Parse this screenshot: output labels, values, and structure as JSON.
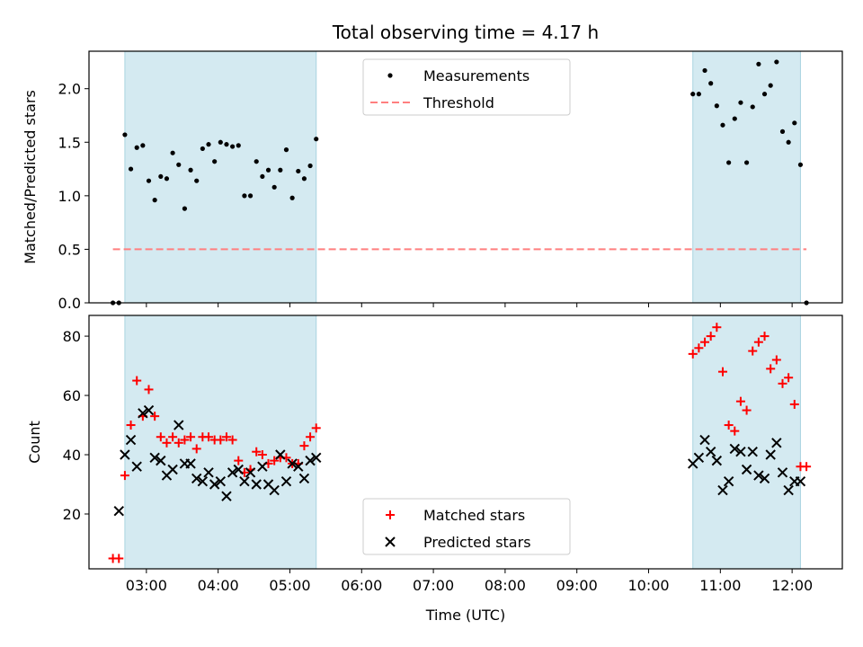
{
  "chart_data": [
    {
      "type": "scatter",
      "title": "Total observing time = 4.17 h",
      "xlabel": "",
      "ylabel": "Matched/Predicted stars",
      "xlim": [
        "02:12",
        "12:42"
      ],
      "ylim": [
        0,
        2.35
      ],
      "yticks": [
        0.0,
        0.5,
        1.0,
        1.5,
        2.0
      ],
      "ytick_labels": [
        "0.0",
        "0.5",
        "1.0",
        "1.5",
        "2.0"
      ],
      "shaded_intervals": [
        [
          "02:42",
          "05:22"
        ],
        [
          "10:37",
          "12:07"
        ]
      ],
      "shade_color": "#d4eaf1",
      "legend_position": "upper center",
      "series": [
        {
          "name": "Measurements",
          "marker": "dot",
          "color": "#000000",
          "x": [
            "02:32",
            "02:37",
            "02:42",
            "02:47",
            "02:52",
            "02:57",
            "03:02",
            "03:07",
            "03:12",
            "03:17",
            "03:22",
            "03:27",
            "03:32",
            "03:37",
            "03:42",
            "03:47",
            "03:52",
            "03:57",
            "04:02",
            "04:07",
            "04:12",
            "04:17",
            "04:22",
            "04:27",
            "04:32",
            "04:37",
            "04:42",
            "04:47",
            "04:52",
            "04:57",
            "05:02",
            "05:07",
            "05:12",
            "05:17",
            "05:22",
            "10:37",
            "10:42",
            "10:47",
            "10:52",
            "10:57",
            "11:02",
            "11:07",
            "11:12",
            "11:17",
            "11:22",
            "11:27",
            "11:32",
            "11:37",
            "11:42",
            "11:47",
            "11:52",
            "11:57",
            "12:02",
            "12:07",
            "12:12"
          ],
          "y": [
            0.0,
            0.0,
            1.57,
            1.25,
            1.45,
            1.47,
            1.14,
            0.96,
            1.18,
            1.16,
            1.4,
            1.29,
            0.88,
            1.24,
            1.14,
            1.44,
            1.48,
            1.32,
            1.5,
            1.48,
            1.46,
            1.47,
            1.0,
            1.0,
            1.32,
            1.18,
            1.24,
            1.08,
            1.24,
            1.43,
            0.98,
            1.23,
            1.16,
            1.28,
            1.53,
            1.95,
            1.95,
            2.17,
            2.05,
            1.84,
            1.66,
            1.31,
            1.72,
            1.87,
            1.31,
            1.83,
            2.23,
            1.95,
            2.03,
            2.25,
            1.6,
            1.5,
            1.68,
            1.29,
            0.0
          ]
        },
        {
          "name": "Threshold",
          "line_style": "dashed",
          "color": "#ff7f7f",
          "x": [
            "02:32",
            "12:12"
          ],
          "y": [
            0.5,
            0.5
          ]
        }
      ]
    },
    {
      "type": "scatter",
      "title": "",
      "xlabel": "Time (UTC)",
      "ylabel": "Count",
      "xlim": [
        "02:12",
        "12:42"
      ],
      "ylim": [
        1.5,
        87
      ],
      "yticks": [
        20,
        40,
        60,
        80
      ],
      "ytick_labels": [
        "20",
        "40",
        "60",
        "80"
      ],
      "xticks": [
        "03:00",
        "04:00",
        "05:00",
        "06:00",
        "07:00",
        "08:00",
        "09:00",
        "10:00",
        "11:00",
        "12:00"
      ],
      "xtick_labels": [
        "03:00",
        "04:00",
        "05:00",
        "06:00",
        "07:00",
        "08:00",
        "09:00",
        "10:00",
        "11:00",
        "12:00"
      ],
      "shaded_intervals": [
        [
          "02:42",
          "05:22"
        ],
        [
          "10:37",
          "12:07"
        ]
      ],
      "shade_color": "#d4eaf1",
      "legend_position": "lower center",
      "series": [
        {
          "name": "Matched stars",
          "marker": "plus",
          "color": "#ff0000",
          "x": [
            "02:32",
            "02:37",
            "02:42",
            "02:47",
            "02:52",
            "02:57",
            "03:02",
            "03:07",
            "03:12",
            "03:17",
            "03:22",
            "03:27",
            "03:32",
            "03:37",
            "03:42",
            "03:47",
            "03:52",
            "03:57",
            "04:02",
            "04:07",
            "04:12",
            "04:17",
            "04:22",
            "04:27",
            "04:32",
            "04:37",
            "04:42",
            "04:47",
            "04:52",
            "04:57",
            "05:02",
            "05:07",
            "05:12",
            "05:17",
            "05:22",
            "10:37",
            "10:42",
            "10:47",
            "10:52",
            "10:57",
            "11:02",
            "11:07",
            "11:12",
            "11:17",
            "11:22",
            "11:27",
            "11:32",
            "11:37",
            "11:42",
            "11:47",
            "11:52",
            "11:57",
            "12:02",
            "12:07",
            "12:12"
          ],
          "y": [
            5,
            5,
            33,
            50,
            65,
            53,
            62,
            53,
            46,
            44,
            46,
            44,
            45,
            46,
            42,
            46,
            46,
            45,
            45,
            46,
            45,
            38,
            34,
            35,
            41,
            40,
            37,
            38,
            39,
            39,
            37,
            37,
            43,
            46,
            49,
            74,
            76,
            78,
            80,
            83,
            68,
            50,
            48,
            58,
            55,
            75,
            78,
            80,
            69,
            72,
            64,
            66,
            57,
            36,
            36
          ]
        },
        {
          "name": "Predicted stars",
          "marker": "x",
          "color": "#000000",
          "x": [
            "02:37",
            "02:42",
            "02:47",
            "02:52",
            "02:57",
            "03:02",
            "03:07",
            "03:12",
            "03:17",
            "03:22",
            "03:27",
            "03:32",
            "03:37",
            "03:42",
            "03:47",
            "03:52",
            "03:57",
            "04:02",
            "04:07",
            "04:12",
            "04:17",
            "04:22",
            "04:27",
            "04:32",
            "04:37",
            "04:42",
            "04:47",
            "04:52",
            "04:57",
            "05:02",
            "05:07",
            "05:12",
            "05:17",
            "05:22",
            "10:37",
            "10:42",
            "10:47",
            "10:52",
            "10:57",
            "11:02",
            "11:07",
            "11:12",
            "11:17",
            "11:22",
            "11:27",
            "11:32",
            "11:37",
            "11:42",
            "11:47",
            "11:52",
            "11:57",
            "12:02",
            "12:07"
          ],
          "y": [
            21,
            40,
            45,
            36,
            54,
            55,
            39,
            38,
            33,
            35,
            50,
            37,
            37,
            32,
            31,
            34,
            30,
            31,
            26,
            34,
            35,
            31,
            34,
            30,
            36,
            30,
            28,
            40,
            31,
            37,
            36,
            32,
            38,
            39,
            37,
            39,
            45,
            41,
            38,
            28,
            31,
            42,
            41,
            35,
            41,
            33,
            32,
            40,
            44,
            34,
            28,
            31,
            31
          ]
        }
      ]
    }
  ]
}
